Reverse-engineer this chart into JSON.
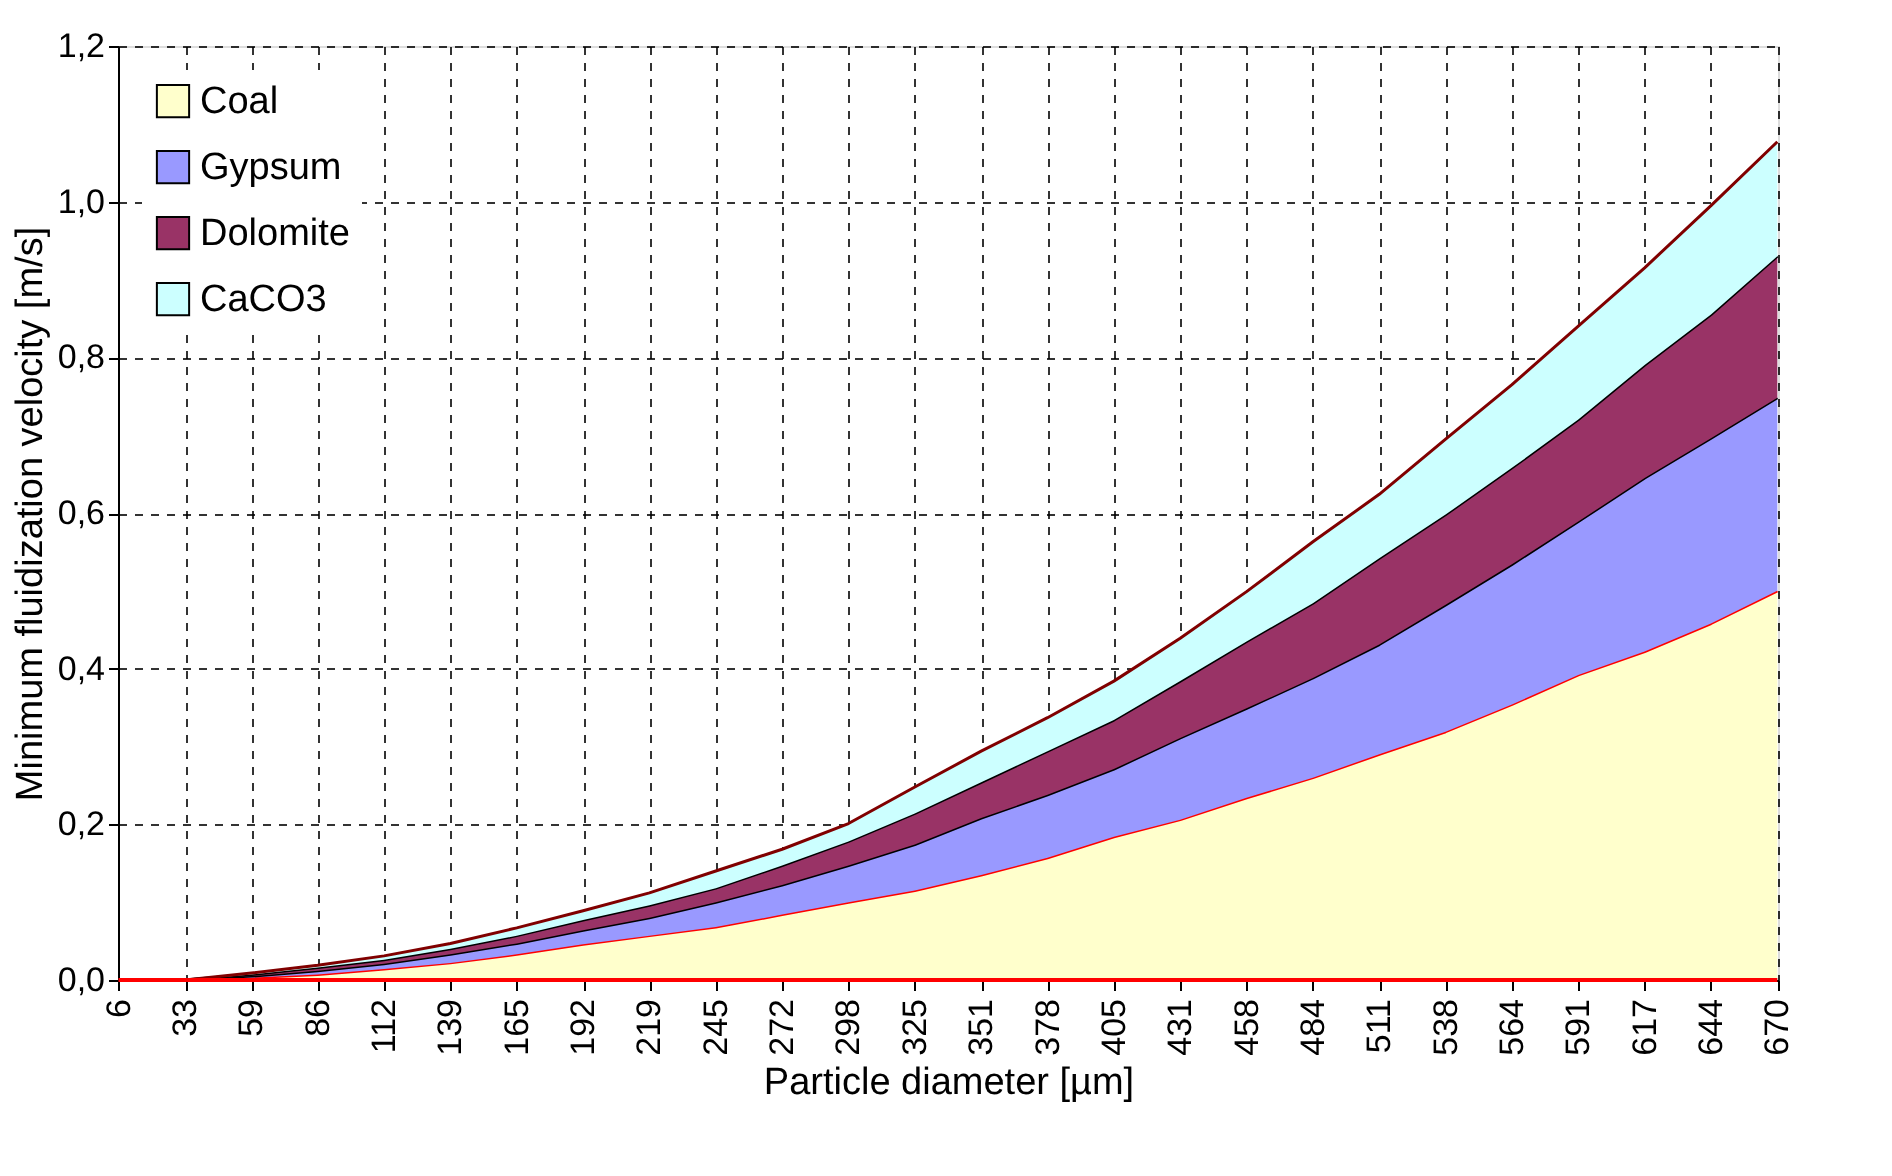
{
  "chart_data": {
    "type": "area",
    "stacked": true,
    "xlabel": "Particle diameter [µm]",
    "ylabel": "Minimum fluidization velocity [m/s]",
    "categories": [
      "6",
      "33",
      "59",
      "86",
      "112",
      "139",
      "165",
      "192",
      "219",
      "245",
      "272",
      "298",
      "325",
      "351",
      "378",
      "405",
      "431",
      "458",
      "484",
      "511",
      "538",
      "564",
      "591",
      "617",
      "644",
      "670"
    ],
    "series": [
      {
        "name": "Coal",
        "color": "#ffffcc",
        "values": [
          0,
          0,
          0.003,
          0.007,
          0.014,
          0.022,
          0.033,
          0.046,
          0.057,
          0.068,
          0.084,
          0.1,
          0.115,
          0.135,
          0.157,
          0.184,
          0.206,
          0.234,
          0.26,
          0.29,
          0.319,
          0.354,
          0.392,
          0.422,
          0.458,
          0.5
        ]
      },
      {
        "name": "Gypsum",
        "color": "#9999ff",
        "values": [
          0,
          0,
          0.002,
          0.005,
          0.007,
          0.011,
          0.014,
          0.018,
          0.023,
          0.032,
          0.038,
          0.047,
          0.059,
          0.073,
          0.081,
          0.087,
          0.105,
          0.115,
          0.128,
          0.141,
          0.163,
          0.18,
          0.197,
          0.223,
          0.238,
          0.248
        ]
      },
      {
        "name": "Dolomite",
        "color": "#993366",
        "values": [
          0,
          0,
          0.002,
          0.004,
          0.005,
          0.007,
          0.01,
          0.013,
          0.016,
          0.018,
          0.025,
          0.031,
          0.04,
          0.046,
          0.056,
          0.063,
          0.073,
          0.086,
          0.096,
          0.111,
          0.116,
          0.124,
          0.131,
          0.145,
          0.159,
          0.182
        ]
      },
      {
        "name": "CaCO3",
        "color": "#ccffff",
        "values": [
          0,
          0,
          0.002,
          0.003,
          0.005,
          0.007,
          0.01,
          0.012,
          0.016,
          0.022,
          0.021,
          0.023,
          0.034,
          0.04,
          0.043,
          0.05,
          0.055,
          0.064,
          0.079,
          0.082,
          0.097,
          0.107,
          0.12,
          0.125,
          0.14,
          0.147
        ]
      }
    ],
    "ylim": [
      0,
      1.2
    ],
    "yticks": [
      {
        "value": 0,
        "label": "0,0"
      },
      {
        "value": 0.2,
        "label": "0,2"
      },
      {
        "value": 0.4,
        "label": "0,4"
      },
      {
        "value": 0.6,
        "label": "0,6"
      },
      {
        "value": 0.8,
        "label": "0,8"
      },
      {
        "value": 1.0,
        "label": "1,0"
      },
      {
        "value": 1.2,
        "label": "1,2"
      }
    ],
    "grid": true,
    "legend": "top left",
    "line_style": "solid",
    "marker": "none"
  }
}
